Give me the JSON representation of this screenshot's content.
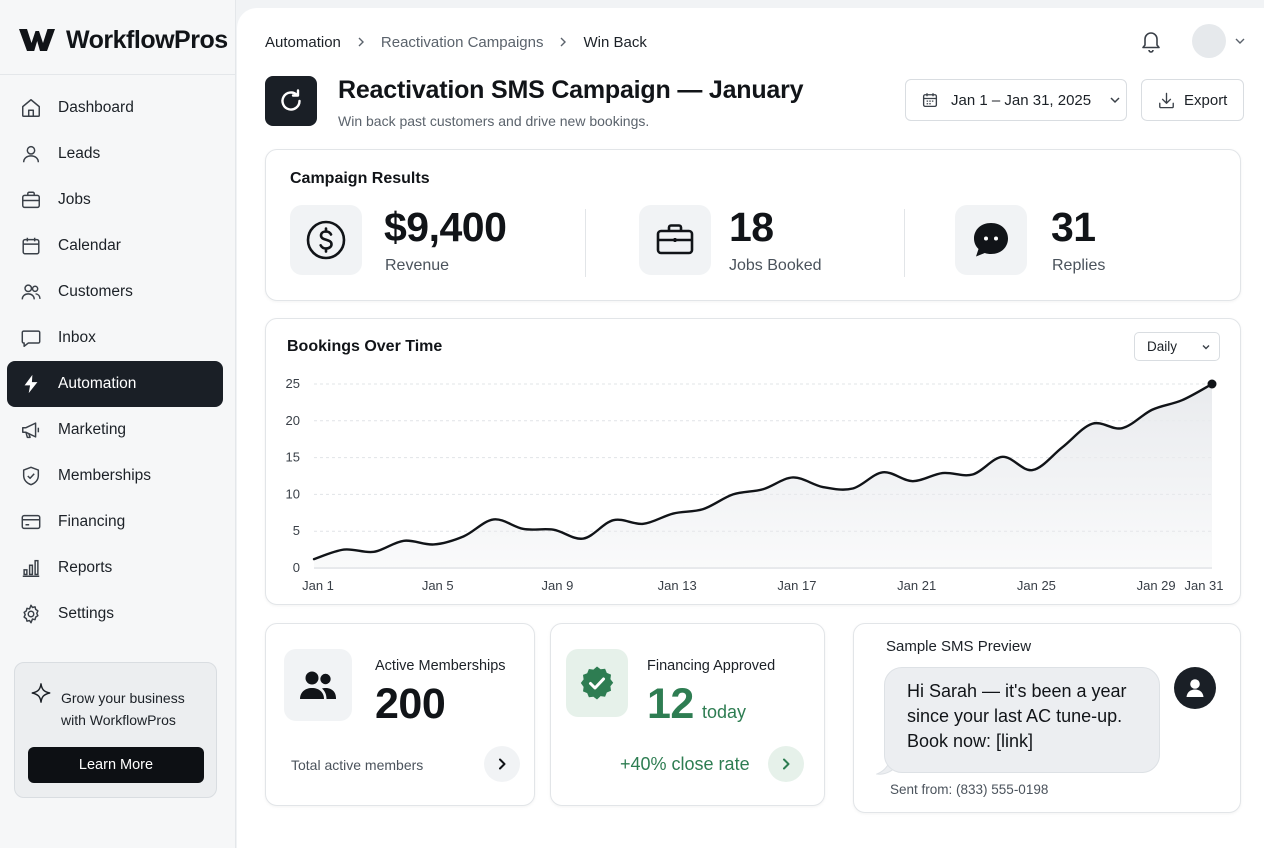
{
  "app": {
    "name": "WorkflowPros"
  },
  "sidebar": {
    "items": [
      {
        "label": "Dashboard",
        "icon": "home-icon"
      },
      {
        "label": "Leads",
        "icon": "user-icon"
      },
      {
        "label": "Jobs",
        "icon": "briefcase-icon"
      },
      {
        "label": "Calendar",
        "icon": "calendar-icon"
      },
      {
        "label": "Customers",
        "icon": "users-icon"
      },
      {
        "label": "Inbox",
        "icon": "message-icon"
      },
      {
        "label": "Automation",
        "icon": "bolt-icon",
        "active": true
      },
      {
        "label": "Marketing",
        "icon": "megaphone-icon"
      },
      {
        "label": "Memberships",
        "icon": "shield-icon"
      },
      {
        "label": "Financing",
        "icon": "credit-card-icon"
      },
      {
        "label": "Reports",
        "icon": "bar-chart-icon"
      },
      {
        "label": "Settings",
        "icon": "gear-icon"
      }
    ],
    "promo": {
      "text": "Grow your business with WorkflowPros",
      "button": "Learn More"
    }
  },
  "header": {
    "breadcrumb": [
      "Automation",
      "Reactivation Campaigns",
      "Win Back"
    ]
  },
  "page": {
    "title": "Reactivation SMS Campaign — January",
    "subtitle": "Win back past customers and drive new bookings.",
    "date_range": "Jan 1 – Jan 31, 2025",
    "export_label": "Export"
  },
  "results": {
    "title": "Campaign Results",
    "kpis": [
      {
        "value": "$9,400",
        "label": "Revenue",
        "icon": "dollar-icon"
      },
      {
        "value": "18",
        "label": "Jobs Booked",
        "icon": "briefcase-icon"
      },
      {
        "value": "31",
        "label": "Replies",
        "icon": "chat-bubble-icon"
      }
    ]
  },
  "bookings": {
    "title": "Bookings Over Time",
    "granularity": "Daily"
  },
  "chart_data": {
    "type": "area",
    "title": "Bookings Over Time",
    "x": [
      "Jan 1",
      "Jan 2",
      "Jan 3",
      "Jan 4",
      "Jan 5",
      "Jan 6",
      "Jan 7",
      "Jan 8",
      "Jan 9",
      "Jan 10",
      "Jan 11",
      "Jan 12",
      "Jan 13",
      "Jan 14",
      "Jan 15",
      "Jan 16",
      "Jan 17",
      "Jan 18",
      "Jan 19",
      "Jan 20",
      "Jan 21",
      "Jan 22",
      "Jan 23",
      "Jan 24",
      "Jan 25",
      "Jan 26",
      "Jan 27",
      "Jan 28",
      "Jan 29",
      "Jan 30",
      "Jan 31"
    ],
    "xticks": [
      "Jan 1",
      "Jan 5",
      "Jan 9",
      "Jan 13",
      "Jan 17",
      "Jan 21",
      "Jan 25",
      "Jan 29",
      "Jan 31"
    ],
    "series": [
      {
        "values": [
          1.2,
          2.5,
          2.2,
          3.7,
          3.2,
          4.3,
          6.6,
          5.3,
          5.2,
          4.0,
          6.5,
          6.0,
          7.4,
          8.0,
          10.0,
          10.7,
          12.3,
          11.0,
          10.8,
          13.0,
          11.8,
          12.9,
          12.7,
          15.1,
          13.3,
          16.4,
          19.6,
          19.0,
          21.5,
          22.8,
          25.0
        ]
      }
    ],
    "ylim": [
      0,
      25
    ],
    "yticks": [
      0,
      5,
      10,
      15,
      20,
      25
    ],
    "grid": true,
    "line_color": "#111418",
    "fill_color": "#e9ebee"
  },
  "memberships": {
    "title": "Active Memberships",
    "value": "200",
    "caption": "Total active members"
  },
  "financing": {
    "title": "Financing Approved",
    "value": "12",
    "unit": "today",
    "caption": "+40% close rate",
    "accent": "#2e7d52"
  },
  "sms": {
    "title": "Sample SMS Preview",
    "message_lines": [
      "Hi Sarah — it's been a year",
      "since your last AC tune-up.",
      "Book now: [link]"
    ],
    "sent_from": "Sent from: (833) 555-0198"
  }
}
